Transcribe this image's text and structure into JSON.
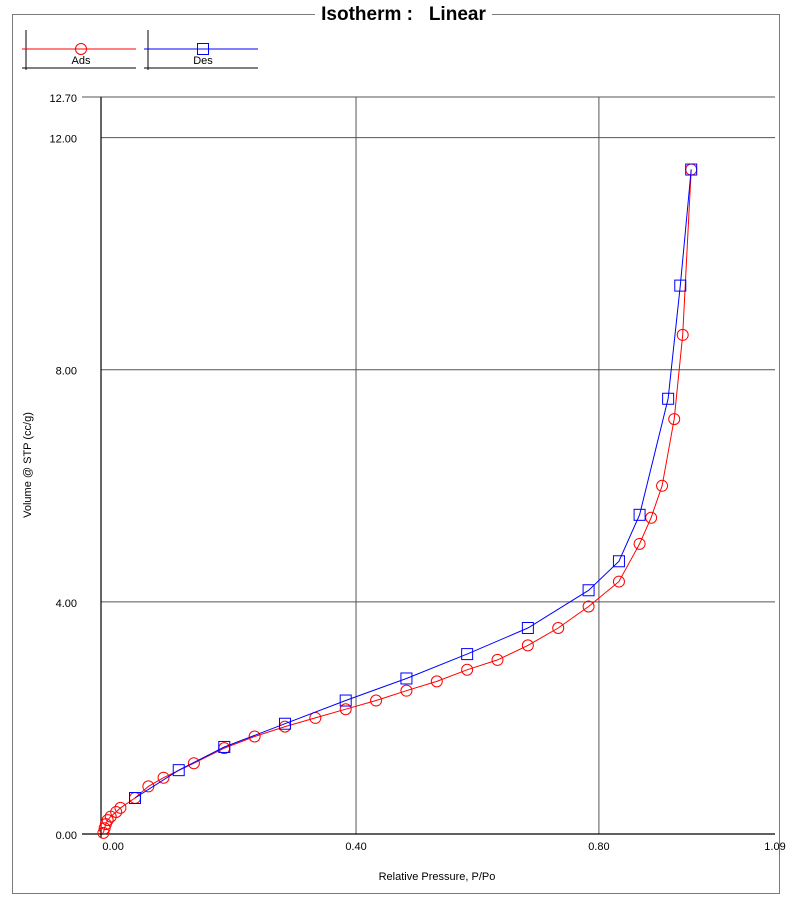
{
  "title": "Isotherm :   Linear",
  "chart_data": {
    "type": "line",
    "title": "Isotherm :   Linear",
    "xlabel": "Relative Pressure, P/Po",
    "ylabel": "Volume @ STP (cc/g)",
    "xlim": [
      -0.02,
      1.09
    ],
    "ylim": [
      0.0,
      12.7
    ],
    "x_ticks": [
      {
        "value": 0.0,
        "label": "0.00"
      },
      {
        "value": 0.4,
        "label": "0.40"
      },
      {
        "value": 0.8,
        "label": "0.80"
      },
      {
        "value": 1.09,
        "label": "1.09"
      }
    ],
    "y_ticks": [
      {
        "value": 0.0,
        "label": "0.00"
      },
      {
        "value": 4.0,
        "label": "4.00"
      },
      {
        "value": 8.0,
        "label": "8.00"
      },
      {
        "value": 12.0,
        "label": "12.00"
      },
      {
        "value": 12.7,
        "label": "12.70"
      }
    ],
    "x_grid": [
      0.4,
      0.8
    ],
    "y_grid": [
      4.0,
      8.0,
      12.0
    ],
    "legend_position": "top-left",
    "series": [
      {
        "name": "Ads",
        "color": "#ff0000",
        "marker": "circle",
        "points": [
          [
            -0.016,
            0.02
          ],
          [
            -0.014,
            0.1
          ],
          [
            -0.012,
            0.17
          ],
          [
            -0.009,
            0.24
          ],
          [
            -0.004,
            0.3
          ],
          [
            0.005,
            0.38
          ],
          [
            0.012,
            0.45
          ],
          [
            0.036,
            0.62
          ],
          [
            0.058,
            0.82
          ],
          [
            0.083,
            0.97
          ],
          [
            0.133,
            1.22
          ],
          [
            0.183,
            1.48
          ],
          [
            0.233,
            1.68
          ],
          [
            0.283,
            1.85
          ],
          [
            0.333,
            2.0
          ],
          [
            0.383,
            2.15
          ],
          [
            0.433,
            2.3
          ],
          [
            0.483,
            2.47
          ],
          [
            0.533,
            2.63
          ],
          [
            0.583,
            2.83
          ],
          [
            0.633,
            3.0
          ],
          [
            0.683,
            3.25
          ],
          [
            0.733,
            3.55
          ],
          [
            0.783,
            3.92
          ],
          [
            0.833,
            4.35
          ],
          [
            0.867,
            5.0
          ],
          [
            0.886,
            5.45
          ],
          [
            0.904,
            6.0
          ],
          [
            0.924,
            7.15
          ],
          [
            0.938,
            8.6
          ],
          [
            0.952,
            11.45
          ]
        ]
      },
      {
        "name": "Des",
        "color": "#0000ff",
        "marker": "square",
        "points": [
          [
            0.952,
            11.45
          ],
          [
            0.934,
            9.45
          ],
          [
            0.914,
            7.5
          ],
          [
            0.867,
            5.5
          ],
          [
            0.833,
            4.7
          ],
          [
            0.783,
            4.2
          ],
          [
            0.683,
            3.55
          ],
          [
            0.583,
            3.1
          ],
          [
            0.483,
            2.68
          ],
          [
            0.383,
            2.3
          ],
          [
            0.283,
            1.9
          ],
          [
            0.183,
            1.5
          ],
          [
            0.108,
            1.1
          ],
          [
            0.036,
            0.62
          ]
        ]
      }
    ]
  }
}
